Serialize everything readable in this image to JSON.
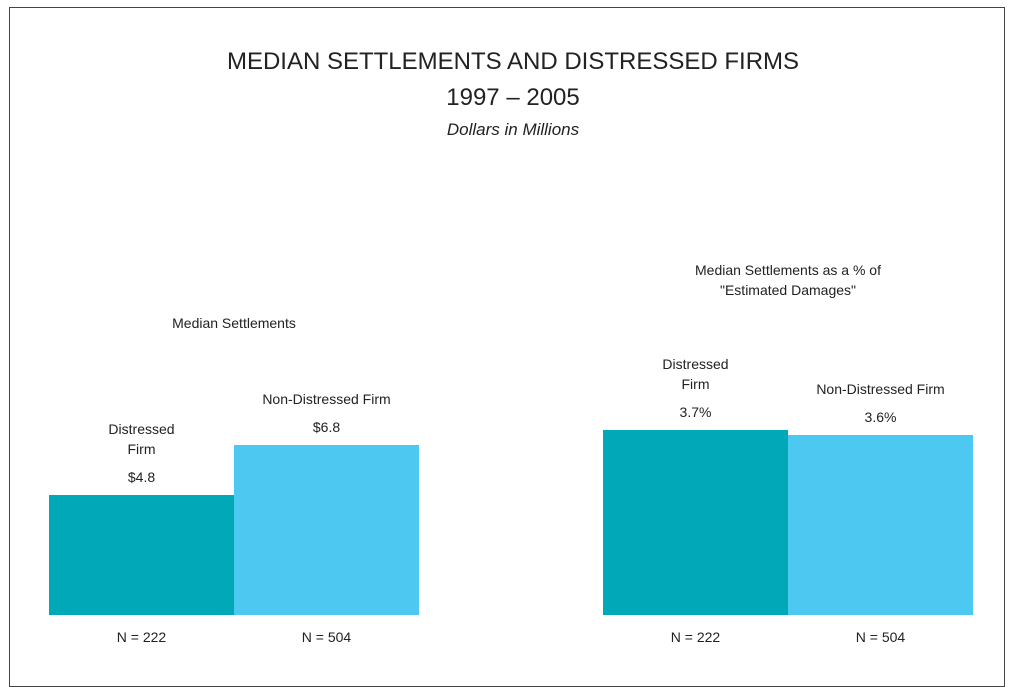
{
  "header": {
    "title": "MEDIAN SETTLEMENTS AND DISTRESSED FIRMS",
    "period": "1997 – 2005",
    "subtitle": "Dollars in Millions"
  },
  "chart_data": [
    {
      "type": "bar",
      "title": "Median Settlements",
      "categories": [
        "Distressed Firm",
        "Non-Distressed Firm"
      ],
      "values": [
        4.8,
        6.8
      ],
      "value_labels": [
        "$4.8",
        "$6.8"
      ],
      "sample_labels": [
        "N = 222",
        "N = 504"
      ],
      "colors": [
        "#00a8b8",
        "#4dc8f0"
      ]
    },
    {
      "type": "bar",
      "title": "Median Settlements as a % of \"Estimated Damages\"",
      "categories": [
        "Distressed Firm",
        "Non-Distressed Firm"
      ],
      "values": [
        3.7,
        3.6
      ],
      "value_labels": [
        "3.7%",
        "3.6%"
      ],
      "sample_labels": [
        "N = 222",
        "N = 504"
      ],
      "colors": [
        "#00a8b8",
        "#4dc8f0"
      ]
    }
  ]
}
